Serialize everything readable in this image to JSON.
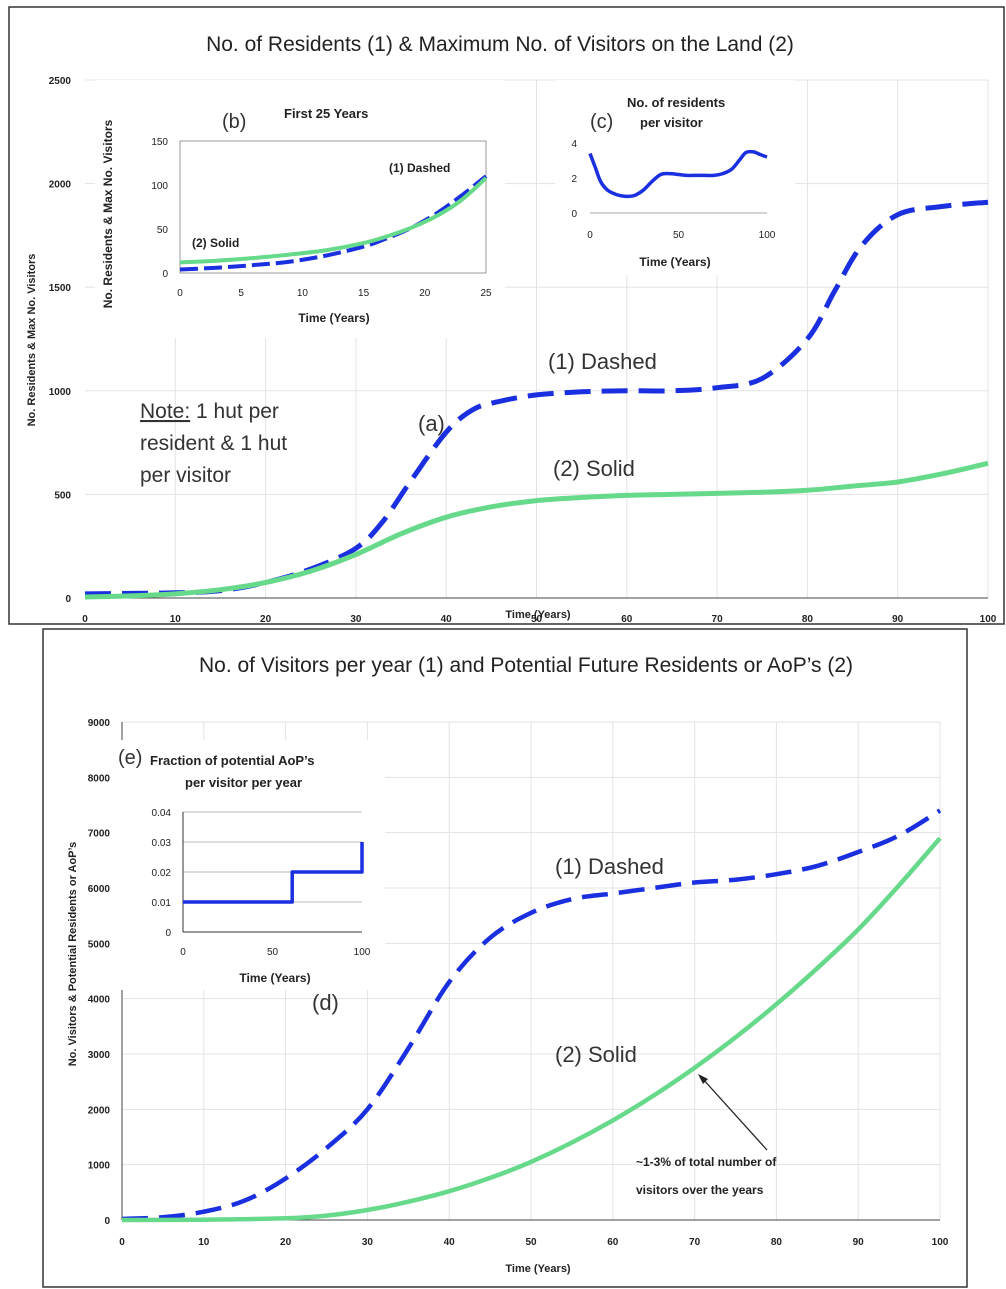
{
  "chart_data": [
    {
      "id": "top",
      "type": "line",
      "title": "No. of Residents (1) & Maximum No. of Visitors on the Land (2)",
      "xlabel": "Time (Years)",
      "ylabel": "No. Residents & Max No. Visitors",
      "xlim": [
        0,
        100
      ],
      "ylim": [
        0,
        2500
      ],
      "xticks": [
        0,
        10,
        20,
        30,
        40,
        50,
        60,
        70,
        80,
        90,
        100
      ],
      "yticks": [
        0,
        500,
        1000,
        1500,
        2000,
        2500
      ],
      "grid": true,
      "series": [
        {
          "name": "(1) Dashed",
          "style": "dashed",
          "color": "#1a2fe0",
          "x": [
            0,
            5,
            10,
            15,
            20,
            25,
            30,
            33,
            36,
            40,
            43,
            46,
            50,
            55,
            60,
            65,
            70,
            75,
            80,
            83,
            86,
            90,
            95,
            100
          ],
          "y": [
            20,
            22,
            25,
            35,
            75,
            140,
            240,
            370,
            560,
            800,
            910,
            950,
            980,
            995,
            1000,
            1000,
            1015,
            1060,
            1250,
            1480,
            1700,
            1850,
            1890,
            1910
          ]
        },
        {
          "name": "(2) Solid",
          "style": "solid",
          "color": "#66d98a",
          "x": [
            0,
            5,
            10,
            15,
            20,
            25,
            30,
            35,
            40,
            45,
            50,
            55,
            60,
            65,
            70,
            75,
            80,
            85,
            90,
            95,
            100
          ],
          "y": [
            5,
            10,
            20,
            40,
            75,
            130,
            210,
            310,
            390,
            440,
            470,
            485,
            495,
            500,
            505,
            510,
            520,
            540,
            560,
            600,
            650
          ]
        }
      ],
      "annotations": [
        "(1) Dashed",
        "(2) Solid",
        "(a)"
      ],
      "note": {
        "underlined": "Note:",
        "lines": [
          " 1 hut per",
          "resident & 1 hut",
          "per visitor"
        ]
      }
    },
    {
      "id": "inset-b",
      "type": "line",
      "panel_label": "(b)",
      "title": "First 25 Years",
      "xlabel": "Time (Years)",
      "ylabel": "No. Residents & Max No. Visitors",
      "xlim": [
        0,
        25
      ],
      "ylim": [
        0,
        150
      ],
      "xticks": [
        0,
        5,
        10,
        15,
        20,
        25
      ],
      "yticks": [
        0,
        50,
        100,
        150
      ],
      "series": [
        {
          "name": "(1) Dashed",
          "style": "dashed",
          "color": "#1a2fe0",
          "x": [
            0,
            3,
            6,
            9,
            12,
            15,
            17,
            19,
            21,
            23,
            25
          ],
          "y": [
            4,
            6,
            9,
            13,
            20,
            30,
            40,
            52,
            68,
            88,
            110
          ]
        },
        {
          "name": "(2) Solid",
          "style": "solid",
          "color": "#66d98a",
          "x": [
            0,
            3,
            6,
            9,
            12,
            15,
            17,
            19,
            21,
            23,
            25
          ],
          "y": [
            12,
            14,
            17,
            21,
            26,
            34,
            42,
            52,
            65,
            83,
            108
          ]
        }
      ],
      "annotations": [
        "(1) Dashed",
        "(2) Solid"
      ]
    },
    {
      "id": "inset-c",
      "type": "line",
      "panel_label": "(c)",
      "title": [
        "No. of residents",
        "per visitor"
      ],
      "xlabel": "Time (Years)",
      "ylabel": "",
      "xlim": [
        0,
        100
      ],
      "ylim": [
        0,
        4
      ],
      "xticks": [
        0,
        50,
        100
      ],
      "yticks": [
        0,
        2,
        4
      ],
      "series": [
        {
          "name": "",
          "style": "solid",
          "color": "#1a2fe0",
          "x": [
            0,
            3,
            6,
            10,
            15,
            20,
            25,
            30,
            35,
            40,
            45,
            50,
            55,
            60,
            65,
            70,
            75,
            80,
            85,
            88,
            92,
            96,
            100
          ],
          "y": [
            3.4,
            2.6,
            1.8,
            1.3,
            1.05,
            0.95,
            1.0,
            1.3,
            1.8,
            2.2,
            2.25,
            2.2,
            2.15,
            2.15,
            2.15,
            2.15,
            2.25,
            2.5,
            3.1,
            3.45,
            3.5,
            3.35,
            3.2
          ]
        }
      ]
    },
    {
      "id": "bottom",
      "type": "line",
      "title": "No. of Visitors per year (1) and Potential Future Residents or AoP’s (2)",
      "xlabel": "Time (Years)",
      "ylabel": "No. Visitors & Potential Residents or AoP’s",
      "xlim": [
        0,
        100
      ],
      "ylim": [
        0,
        9000
      ],
      "xticks": [
        0,
        10,
        20,
        30,
        40,
        50,
        60,
        70,
        80,
        90,
        100
      ],
      "yticks": [
        0,
        1000,
        2000,
        3000,
        4000,
        5000,
        6000,
        7000,
        8000,
        9000
      ],
      "grid": true,
      "series": [
        {
          "name": "(1) Dashed",
          "style": "dashed",
          "color": "#1a2fe0",
          "x": [
            0,
            5,
            10,
            15,
            20,
            25,
            30,
            35,
            40,
            45,
            50,
            55,
            60,
            65,
            70,
            75,
            80,
            85,
            90,
            95,
            100
          ],
          "y": [
            20,
            50,
            150,
            350,
            750,
            1300,
            2000,
            3100,
            4300,
            5100,
            5550,
            5800,
            5900,
            6000,
            6100,
            6150,
            6250,
            6400,
            6650,
            6950,
            7400
          ]
        },
        {
          "name": "(2) Solid",
          "style": "solid",
          "color": "#66d98a",
          "x": [
            0,
            10,
            20,
            25,
            30,
            35,
            40,
            45,
            50,
            55,
            60,
            65,
            70,
            75,
            80,
            85,
            90,
            95,
            100
          ],
          "y": [
            0,
            5,
            30,
            80,
            180,
            330,
            520,
            760,
            1050,
            1400,
            1800,
            2250,
            2750,
            3300,
            3900,
            4550,
            5250,
            6050,
            6900
          ]
        }
      ],
      "annotations": [
        "(1) Dashed",
        "(2) Solid",
        "(d)",
        "~1-3% of total number of",
        "visitors over the years"
      ]
    },
    {
      "id": "inset-e",
      "type": "line",
      "panel_label": "(e)",
      "title": [
        "Fraction of potential AoP’s",
        "per visitor per year"
      ],
      "xlabel": "Time (Years)",
      "ylabel": "",
      "xlim": [
        0,
        100
      ],
      "ylim": [
        0,
        0.04
      ],
      "xticks": [
        0,
        50,
        100
      ],
      "yticks": [
        0,
        0.01,
        0.02,
        0.03,
        0.04
      ],
      "series": [
        {
          "name": "",
          "style": "step",
          "color": "#1a2fe0",
          "x": [
            0,
            61,
            61,
            100,
            100
          ],
          "y": [
            0.01,
            0.01,
            0.02,
            0.02,
            0.03
          ]
        }
      ]
    }
  ]
}
